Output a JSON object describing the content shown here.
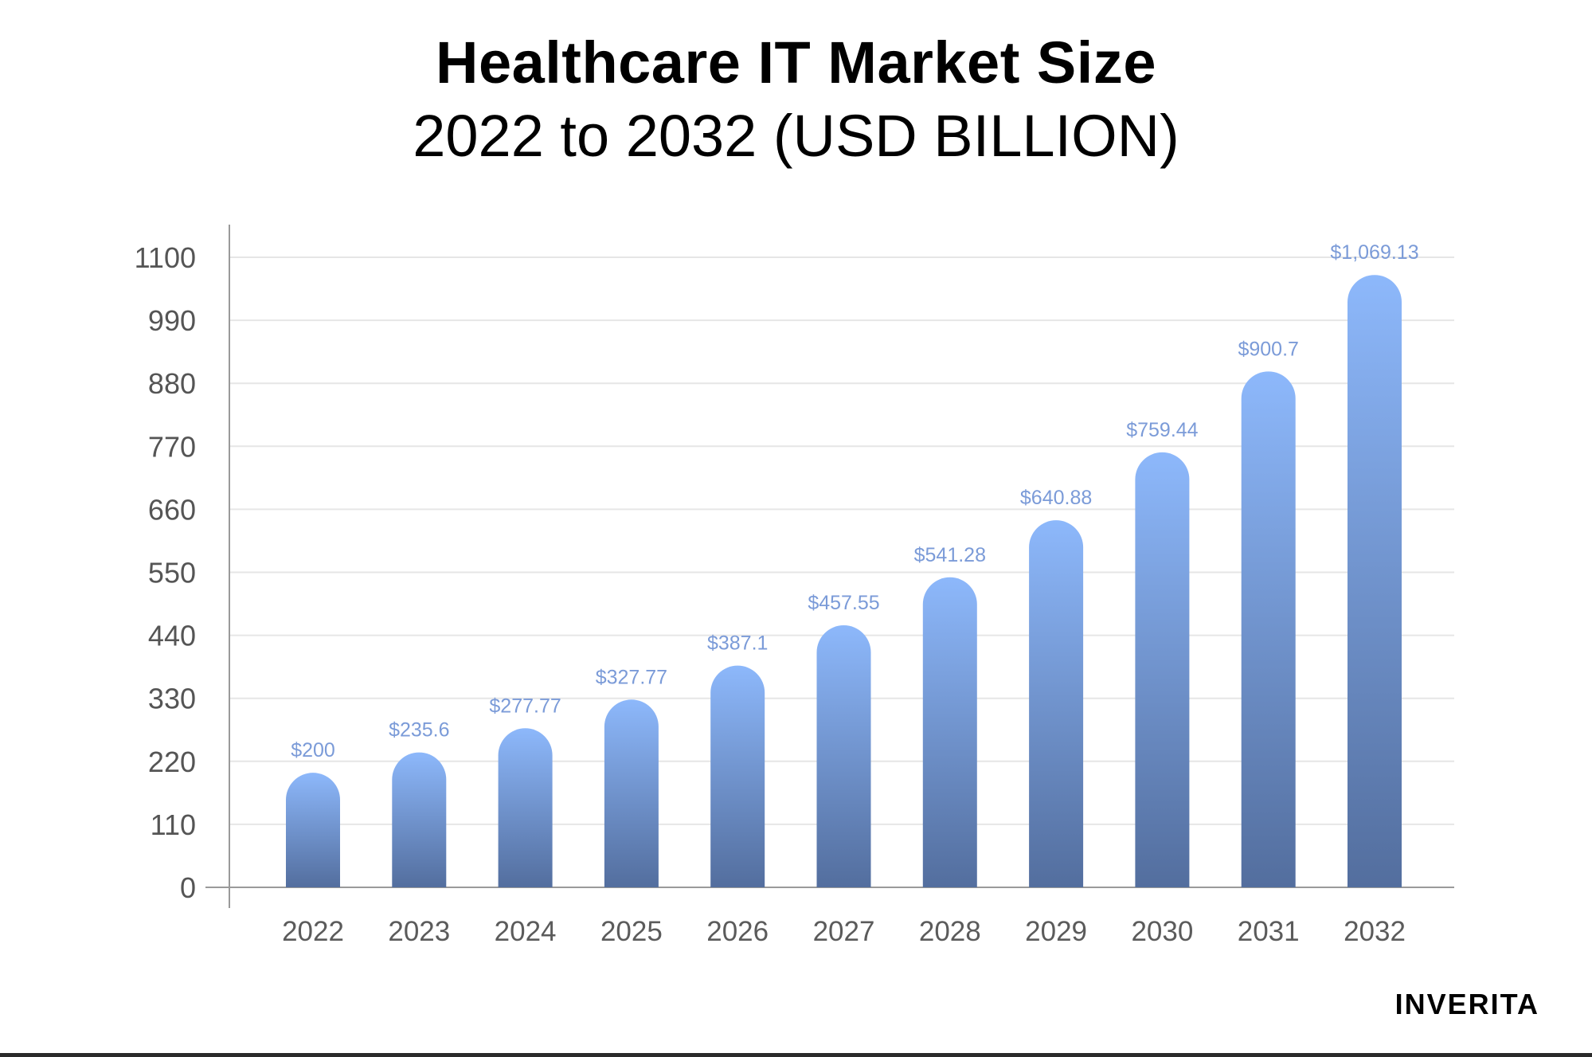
{
  "brand": "INVERITA",
  "colors": {
    "bar_top": "#8db8fb",
    "bar_bottom": "#536e9e",
    "label": "#7b9bd8",
    "grid": "#e6e6e6",
    "axis": "#9a9a9a"
  },
  "chart_data": {
    "type": "bar",
    "title": "Healthcare IT Market Size",
    "subtitle": "2022 to 2032 (USD BILLION)",
    "categories": [
      "2022",
      "2023",
      "2024",
      "2025",
      "2026",
      "2027",
      "2028",
      "2029",
      "2030",
      "2031",
      "2032"
    ],
    "values": [
      200,
      235.6,
      277.77,
      327.77,
      387.1,
      457.55,
      541.28,
      640.88,
      759.44,
      900.7,
      1069.13
    ],
    "data_labels": [
      "$200",
      "$235.6",
      "$277.77",
      "$327.77",
      "$387.1",
      "$457.55",
      "$541.28",
      "$640.88",
      "$759.44",
      "$900.7",
      "$1,069.13"
    ],
    "yticks": [
      "0",
      "110",
      "220",
      "330",
      "440",
      "550",
      "660",
      "770",
      "880",
      "990",
      "1100"
    ],
    "ylim": [
      0,
      1100
    ],
    "grid": true,
    "legend": "none"
  }
}
